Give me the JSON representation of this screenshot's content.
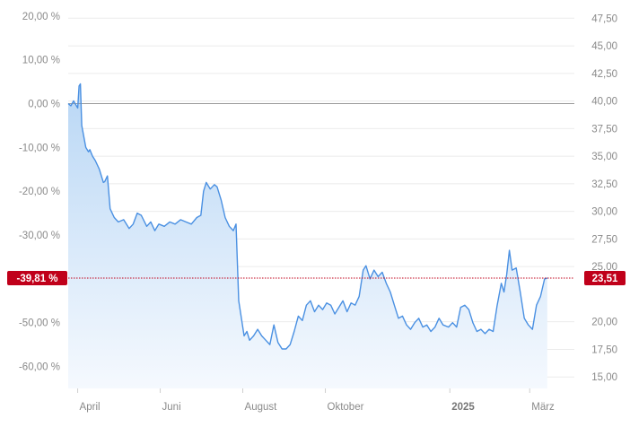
{
  "chart_data": {
    "type": "area",
    "title": "",
    "xlabel": "",
    "ylabel": "",
    "x_ticks": [
      {
        "label": "April",
        "date": "2024-04-01",
        "bold": false
      },
      {
        "label": "Juni",
        "date": "2024-06-01",
        "bold": false
      },
      {
        "label": "August",
        "date": "2024-08-01",
        "bold": false
      },
      {
        "label": "Oktober",
        "date": "2024-10-01",
        "bold": false
      },
      {
        "label": "2025",
        "date": "2025-01-01",
        "bold": true
      },
      {
        "label": "März",
        "date": "2025-03-01",
        "bold": false
      }
    ],
    "xlim": [
      "2024-03-25",
      "2025-04-03"
    ],
    "y_left": {
      "unit": "percent",
      "ylim": [
        -65,
        22
      ],
      "ticks": [
        {
          "value": 20,
          "label": "20,00 %"
        },
        {
          "value": 10,
          "label": "10,00 %"
        },
        {
          "value": 0,
          "label": "0,00 %"
        },
        {
          "value": -10,
          "label": "-10,00 %"
        },
        {
          "value": -20,
          "label": "-20,00 %"
        },
        {
          "value": -30,
          "label": "-30,00 %"
        },
        {
          "value": -50,
          "label": "-50,00 %"
        },
        {
          "value": -60,
          "label": "-60,00 %"
        }
      ]
    },
    "y_right": {
      "unit": "price",
      "ylim": [
        13.96,
        48.5
      ],
      "ticks": [
        {
          "value": 47.5,
          "label": "47,50"
        },
        {
          "value": 45.0,
          "label": "45,00"
        },
        {
          "value": 42.5,
          "label": "42,50"
        },
        {
          "value": 40.0,
          "label": "40,00"
        },
        {
          "value": 37.5,
          "label": "37,50"
        },
        {
          "value": 35.0,
          "label": "35,00"
        },
        {
          "value": 32.5,
          "label": "32,50"
        },
        {
          "value": 30.0,
          "label": "30,00"
        },
        {
          "value": 27.5,
          "label": "27,50"
        },
        {
          "value": 25.0,
          "label": "25,00"
        },
        {
          "value": 20.0,
          "label": "20,00"
        },
        {
          "value": 17.5,
          "label": "17,50"
        },
        {
          "value": 15.0,
          "label": "15,00"
        }
      ]
    },
    "grid": true,
    "legend": "none",
    "current": {
      "percent": -39.81,
      "percent_label": "-39,81 %",
      "price": 23.51,
      "price_label": "23,51"
    },
    "colors": {
      "line": "#4a90e2",
      "fill_top": "#b9d7f5",
      "fill_bottom": "#f5f9fe",
      "badge": "#c0001a",
      "zero_line": "#9a9a9a",
      "grid": "#ebebeb"
    },
    "series": [
      {
        "unit": "percent",
        "points": [
          [
            "2024-03-25",
            0.0
          ],
          [
            "2024-03-27",
            -0.5
          ],
          [
            "2024-03-29",
            0.6
          ],
          [
            "2024-04-01",
            -1.0
          ],
          [
            "2024-04-02",
            4.0
          ],
          [
            "2024-04-03",
            4.5
          ],
          [
            "2024-04-04",
            -5.0
          ],
          [
            "2024-04-07",
            -10.0
          ],
          [
            "2024-04-09",
            -11.0
          ],
          [
            "2024-04-10",
            -10.5
          ],
          [
            "2024-04-12",
            -12.0
          ],
          [
            "2024-04-14",
            -13.0
          ],
          [
            "2024-04-17",
            -15.0
          ],
          [
            "2024-04-20",
            -18.0
          ],
          [
            "2024-04-21",
            -17.8
          ],
          [
            "2024-04-23",
            -16.5
          ],
          [
            "2024-04-25",
            -24.0
          ],
          [
            "2024-04-28",
            -26.0
          ],
          [
            "2024-05-01",
            -27.0
          ],
          [
            "2024-05-05",
            -26.5
          ],
          [
            "2024-05-09",
            -28.5
          ],
          [
            "2024-05-12",
            -27.5
          ],
          [
            "2024-05-15",
            -25.0
          ],
          [
            "2024-05-18",
            -25.5
          ],
          [
            "2024-05-22",
            -28.0
          ],
          [
            "2024-05-25",
            -27.0
          ],
          [
            "2024-05-28",
            -29.0
          ],
          [
            "2024-05-31",
            -27.5
          ],
          [
            "2024-06-04",
            -28.0
          ],
          [
            "2024-06-08",
            -27.0
          ],
          [
            "2024-06-12",
            -27.5
          ],
          [
            "2024-06-16",
            -26.5
          ],
          [
            "2024-06-20",
            -27.0
          ],
          [
            "2024-06-24",
            -27.5
          ],
          [
            "2024-06-28",
            -26.0
          ],
          [
            "2024-07-01",
            -25.5
          ],
          [
            "2024-07-03",
            -20.0
          ],
          [
            "2024-07-05",
            -18.0
          ],
          [
            "2024-07-08",
            -19.5
          ],
          [
            "2024-07-11",
            -18.5
          ],
          [
            "2024-07-13",
            -19.0
          ],
          [
            "2024-07-16",
            -22.0
          ],
          [
            "2024-07-19",
            -26.0
          ],
          [
            "2024-07-22",
            -28.0
          ],
          [
            "2024-07-25",
            -29.0
          ],
          [
            "2024-07-27",
            -27.5
          ],
          [
            "2024-07-29",
            -45.0
          ],
          [
            "2024-07-31",
            -49.0
          ],
          [
            "2024-08-02",
            -53.0
          ],
          [
            "2024-08-04",
            -52.0
          ],
          [
            "2024-08-06",
            -54.0
          ],
          [
            "2024-08-09",
            -53.0
          ],
          [
            "2024-08-12",
            -51.5
          ],
          [
            "2024-08-15",
            -53.0
          ],
          [
            "2024-08-18",
            -54.0
          ],
          [
            "2024-08-21",
            -55.0
          ],
          [
            "2024-08-24",
            -50.5
          ],
          [
            "2024-08-27",
            -54.5
          ],
          [
            "2024-08-30",
            -56.0
          ],
          [
            "2024-09-02",
            -56.0
          ],
          [
            "2024-09-05",
            -55.0
          ],
          [
            "2024-09-08",
            -52.0
          ],
          [
            "2024-09-11",
            -48.5
          ],
          [
            "2024-09-14",
            -49.5
          ],
          [
            "2024-09-17",
            -46.0
          ],
          [
            "2024-09-20",
            -45.0
          ],
          [
            "2024-09-23",
            -47.5
          ],
          [
            "2024-09-26",
            -46.0
          ],
          [
            "2024-09-29",
            -47.0
          ],
          [
            "2024-10-02",
            -45.5
          ],
          [
            "2024-10-05",
            -46.0
          ],
          [
            "2024-10-08",
            -48.0
          ],
          [
            "2024-10-11",
            -46.5
          ],
          [
            "2024-10-14",
            -45.0
          ],
          [
            "2024-10-17",
            -47.5
          ],
          [
            "2024-10-20",
            -45.5
          ],
          [
            "2024-10-23",
            -46.0
          ],
          [
            "2024-10-26",
            -44.0
          ],
          [
            "2024-10-29",
            -38.0
          ],
          [
            "2024-10-31",
            -37.0
          ],
          [
            "2024-11-03",
            -40.0
          ],
          [
            "2024-11-06",
            -38.0
          ],
          [
            "2024-11-09",
            -39.5
          ],
          [
            "2024-11-12",
            -38.5
          ],
          [
            "2024-11-15",
            -41.0
          ],
          [
            "2024-11-18",
            -43.0
          ],
          [
            "2024-11-21",
            -46.0
          ],
          [
            "2024-11-24",
            -49.0
          ],
          [
            "2024-11-27",
            -48.5
          ],
          [
            "2024-11-30",
            -50.5
          ],
          [
            "2024-12-03",
            -51.5
          ],
          [
            "2024-12-06",
            -50.0
          ],
          [
            "2024-12-09",
            -49.0
          ],
          [
            "2024-12-12",
            -51.0
          ],
          [
            "2024-12-15",
            -50.5
          ],
          [
            "2024-12-18",
            -52.0
          ],
          [
            "2024-12-21",
            -51.0
          ],
          [
            "2024-12-24",
            -49.0
          ],
          [
            "2024-12-27",
            -50.5
          ],
          [
            "2024-12-31",
            -51.0
          ],
          [
            "2025-01-03",
            -50.0
          ],
          [
            "2025-01-06",
            -51.0
          ],
          [
            "2025-01-09",
            -46.5
          ],
          [
            "2025-01-12",
            -46.0
          ],
          [
            "2025-01-15",
            -47.0
          ],
          [
            "2025-01-18",
            -50.0
          ],
          [
            "2025-01-21",
            -52.0
          ],
          [
            "2025-01-24",
            -51.5
          ],
          [
            "2025-01-27",
            -52.5
          ],
          [
            "2025-01-30",
            -51.5
          ],
          [
            "2025-02-02",
            -52.0
          ],
          [
            "2025-02-05",
            -46.0
          ],
          [
            "2025-02-08",
            -41.0
          ],
          [
            "2025-02-10",
            -43.0
          ],
          [
            "2025-02-12",
            -39.0
          ],
          [
            "2025-02-14",
            -33.5
          ],
          [
            "2025-02-16",
            -38.0
          ],
          [
            "2025-02-19",
            -37.5
          ],
          [
            "2025-02-22",
            -43.0
          ],
          [
            "2025-02-25",
            -49.0
          ],
          [
            "2025-02-28",
            -50.5
          ],
          [
            "2025-03-03",
            -51.5
          ],
          [
            "2025-03-06",
            -46.0
          ],
          [
            "2025-03-09",
            -44.0
          ],
          [
            "2025-03-12",
            -40.0
          ],
          [
            "2025-03-14",
            -39.81
          ]
        ]
      }
    ]
  }
}
